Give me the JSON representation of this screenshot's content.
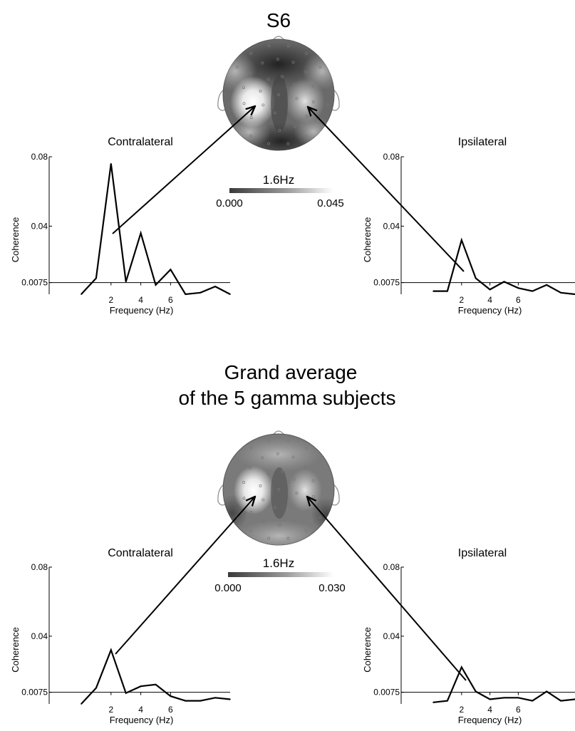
{
  "colors": {
    "line": "#000000",
    "background": "#ffffff",
    "cbar_low": "#3a3a3a",
    "cbar_high": "#ffffff"
  },
  "panels": [
    {
      "title": "S6",
      "title2": "",
      "colorbar": {
        "label": "1.6Hz",
        "min_label": "0.000",
        "max_label": "0.045"
      }
    },
    {
      "title": "Grand average",
      "title2": "of the 5 gamma subjects",
      "colorbar": {
        "label": "1.6Hz",
        "min_label": "0.000",
        "max_label": "0.030"
      }
    }
  ],
  "chart_data": [
    {
      "type": "line",
      "group": "S6",
      "title": "Contralateral",
      "xlabel": "Frequency (Hz)",
      "ylabel": "Coherence",
      "x_ticks": [
        "2",
        "4",
        "6"
      ],
      "y_ticks": [
        "0.0075",
        "0.04",
        "0.08"
      ],
      "xlim": [
        0,
        10
      ],
      "ylim": [
        0,
        0.08
      ],
      "threshold": 0.0075,
      "x": [
        0,
        1,
        2,
        3,
        4,
        5,
        6,
        7,
        8,
        9,
        10
      ],
      "y": [
        0.0,
        0.01,
        0.076,
        0.008,
        0.036,
        0.006,
        0.015,
        0.0,
        0.001,
        0.005,
        0.0
      ]
    },
    {
      "type": "line",
      "group": "S6",
      "title": "Ipsilateral",
      "xlabel": "Frequency (Hz)",
      "ylabel": "Coherence",
      "x_ticks": [
        "2",
        "4",
        "6"
      ],
      "y_ticks": [
        "0.0075",
        "0.04",
        "0.08"
      ],
      "xlim": [
        0,
        10
      ],
      "ylim": [
        0,
        0.08
      ],
      "threshold": 0.0075,
      "x": [
        0,
        1,
        2,
        3,
        4,
        5,
        6,
        7,
        8,
        9,
        10
      ],
      "y": [
        0.002,
        0.002,
        0.032,
        0.01,
        0.003,
        0.008,
        0.004,
        0.002,
        0.006,
        0.001,
        0.0
      ]
    },
    {
      "type": "line",
      "group": "Grand average",
      "title": "Contralateral",
      "xlabel": "Frequency (Hz)",
      "ylabel": "Coherence",
      "x_ticks": [
        "2",
        "4",
        "6"
      ],
      "y_ticks": [
        "0.0075",
        "0.04",
        "0.08"
      ],
      "xlim": [
        0,
        10
      ],
      "ylim": [
        0,
        0.08
      ],
      "threshold": 0.0075,
      "x": [
        0,
        1,
        2,
        3,
        4,
        5,
        6,
        7,
        8,
        9,
        10
      ],
      "y": [
        0.0,
        0.01,
        0.032,
        0.007,
        0.011,
        0.012,
        0.005,
        0.002,
        0.002,
        0.004,
        0.003
      ]
    },
    {
      "type": "line",
      "group": "Grand average",
      "title": "Ipsilateral",
      "xlabel": "Frequency (Hz)",
      "ylabel": "Coherence",
      "x_ticks": [
        "2",
        "4",
        "6"
      ],
      "y_ticks": [
        "0.0075",
        "0.04",
        "0.08"
      ],
      "xlim": [
        0,
        10
      ],
      "ylim": [
        0,
        0.08
      ],
      "threshold": 0.0075,
      "x": [
        0,
        1,
        2,
        3,
        4,
        5,
        6,
        7,
        8,
        9,
        10
      ],
      "y": [
        0.001,
        0.002,
        0.022,
        0.008,
        0.003,
        0.004,
        0.004,
        0.002,
        0.008,
        0.002,
        0.003
      ]
    }
  ]
}
